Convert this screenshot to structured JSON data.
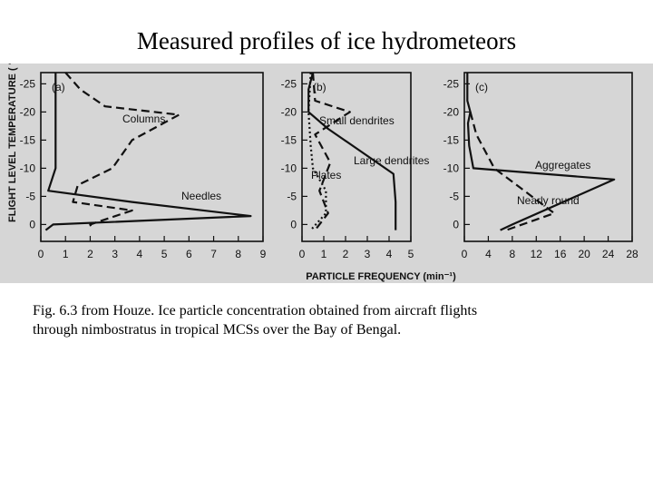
{
  "slide": {
    "title": "Measured profiles of ice hydrometeors",
    "caption_line1": "Fig. 6.3 from Houze.  Ice particle concentration obtained from aircraft flights",
    "caption_line2": "through nimbostratus in tropical MCSs over the Bay of Bengal."
  },
  "chart_data": [
    {
      "type": "line",
      "panel_label": "(a)",
      "ylabel": "FLIGHT LEVEL TEMPERATURE ( °C)",
      "xlabel": "PARTICLE FREQUENCY (min⁻¹)",
      "xlim": [
        0,
        9
      ],
      "xticks": [
        "0",
        "1",
        "2",
        "3",
        "4",
        "5",
        "6",
        "7",
        "8",
        "9"
      ],
      "ylim": [
        3,
        -27
      ],
      "yticks": [
        "-25",
        "-20",
        "-15",
        "-10",
        "-5",
        "0"
      ],
      "series": [
        {
          "name": "Columns",
          "style": "dashed",
          "points": [
            [
              1.0,
              -27
            ],
            [
              1.6,
              -24
            ],
            [
              2.6,
              -21
            ],
            [
              5.6,
              -19.5
            ],
            [
              3.7,
              -15
            ],
            [
              2.9,
              -10
            ],
            [
              1.5,
              -7
            ],
            [
              1.3,
              -4
            ],
            [
              3.7,
              -2.5
            ],
            [
              2.0,
              0
            ],
            [
              2.1,
              1
            ]
          ]
        },
        {
          "name": "Needles",
          "style": "solid",
          "points": [
            [
              0.6,
              -27
            ],
            [
              0.6,
              -10
            ],
            [
              0.3,
              -6
            ],
            [
              3.7,
              -4
            ],
            [
              8.5,
              -1.5
            ],
            [
              0.5,
              0
            ],
            [
              0.2,
              1
            ]
          ]
        }
      ]
    },
    {
      "type": "line",
      "panel_label": "(b)",
      "xlim": [
        0,
        5
      ],
      "xticks": [
        "0",
        "1",
        "2",
        "3",
        "4",
        "5"
      ],
      "ylim": [
        3,
        -27
      ],
      "yticks": [
        "-25",
        "-20",
        "-15",
        "-10",
        "-5",
        "0"
      ],
      "series": [
        {
          "name": "Small dendrites",
          "style": "solid",
          "points": [
            [
              0.5,
              -27
            ],
            [
              0.3,
              -24
            ],
            [
              0.3,
              -20
            ],
            [
              1.2,
              -17
            ],
            [
              4.2,
              -9
            ],
            [
              4.3,
              -4
            ],
            [
              4.3,
              1
            ]
          ]
        },
        {
          "name": "Large dendrites",
          "style": "dashed",
          "points": [
            [
              0.5,
              -27
            ],
            [
              0.6,
              -22
            ],
            [
              2.2,
              -20
            ],
            [
              0.6,
              -16
            ],
            [
              1.3,
              -11
            ],
            [
              0.8,
              -6
            ],
            [
              1.2,
              -2
            ],
            [
              0.6,
              1
            ]
          ]
        },
        {
          "name": "Plates",
          "style": "dotted",
          "points": [
            [
              0.4,
              -27
            ],
            [
              0.3,
              -20
            ],
            [
              0.4,
              -14
            ],
            [
              0.5,
              -10
            ],
            [
              1.1,
              -6
            ],
            [
              1.1,
              -2
            ],
            [
              0.4,
              1
            ]
          ]
        }
      ]
    },
    {
      "type": "line",
      "panel_label": "(c)",
      "xlim": [
        0,
        28
      ],
      "xticks": [
        "0",
        "4",
        "8",
        "12",
        "16",
        "20",
        "24",
        "28"
      ],
      "ylim": [
        3,
        -27
      ],
      "yticks": [
        "-25",
        "-20",
        "-15",
        "-10",
        "-5",
        "0"
      ],
      "series": [
        {
          "name": "Aggregates",
          "style": "solid",
          "points": [
            [
              0.5,
              -27
            ],
            [
              0.5,
              -22
            ],
            [
              1.0,
              -20
            ],
            [
              0.6,
              -18
            ],
            [
              0.8,
              -14
            ],
            [
              1.5,
              -10
            ],
            [
              25.0,
              -8
            ],
            [
              8.0,
              0
            ],
            [
              6.0,
              1
            ]
          ]
        },
        {
          "name": "Nearly round",
          "style": "dashed",
          "points": [
            [
              1.0,
              -20
            ],
            [
              2.0,
              -16
            ],
            [
              5.0,
              -10
            ],
            [
              15.0,
              -2
            ],
            [
              7.0,
              1
            ]
          ]
        }
      ]
    }
  ]
}
